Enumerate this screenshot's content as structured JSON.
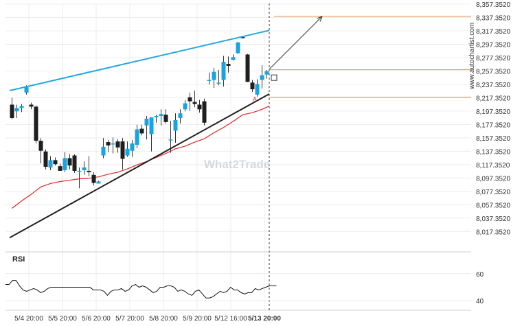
{
  "watermark": "What2Trade",
  "site_credit": "www.autochartist.com",
  "rsi_label": "RSI",
  "colors": {
    "up": "#1aa3e0",
    "down": "#1f1f1f",
    "resistance_line": "#22a8e0",
    "support_line": "#222222",
    "moving_average": "#e02424",
    "level_line": "#e08a4a",
    "current_time_line": "#333333",
    "rsi_line": "#111111"
  },
  "chart_data": {
    "type": "candlestick",
    "y_range": [
      8007.352,
      8357.352
    ],
    "y_ticks": [
      "8,357.3520",
      "8,337.3520",
      "8,317.3520",
      "8,297.3520",
      "8,277.3520",
      "8,257.3520",
      "8,237.3520",
      "8,217.3520",
      "8,197.3520",
      "8,177.3520",
      "8,157.3520",
      "8,137.3520",
      "8,117.3520",
      "8,097.3520",
      "8,077.3520",
      "8,057.3520",
      "8,037.3520",
      "8,017.3520"
    ],
    "x_labels": [
      {
        "label": "5/4 20:00",
        "index": 3.5
      },
      {
        "label": "5/5 20:00",
        "index": 10.5
      },
      {
        "label": "5/6 20:00",
        "index": 17.5
      },
      {
        "label": "5/7 20:00",
        "index": 24.5
      },
      {
        "label": "5/8 20:00",
        "index": 31.5
      },
      {
        "label": "5/9 20:00",
        "index": 38.5
      },
      {
        "label": "5/12 16:00",
        "index": 45.5
      },
      {
        "label": "5/13 20:00",
        "index": 52.5
      }
    ],
    "candles": [
      {
        "o": 8207,
        "h": 8217,
        "l": 8185,
        "c": 8187
      },
      {
        "o": 8197,
        "h": 8207,
        "l": 8187,
        "c": 8202
      },
      {
        "o": 8202,
        "h": 8208,
        "l": 8196,
        "c": 8205
      },
      {
        "o": 8225,
        "h": 8236,
        "l": 8222,
        "c": 8233
      },
      {
        "o": 8207,
        "h": 8210,
        "l": 8200,
        "c": 8204
      },
      {
        "o": 8204,
        "h": 8206,
        "l": 8149,
        "c": 8153
      },
      {
        "o": 8153,
        "h": 8157,
        "l": 8119,
        "c": 8138
      },
      {
        "o": 8137,
        "h": 8140,
        "l": 8110,
        "c": 8114
      },
      {
        "o": 8113,
        "h": 8130,
        "l": 8109,
        "c": 8124
      },
      {
        "o": 8124,
        "h": 8128,
        "l": 8116,
        "c": 8118
      },
      {
        "o": 8115,
        "h": 8119,
        "l": 8108,
        "c": 8108
      },
      {
        "o": 8109,
        "h": 8136,
        "l": 8106,
        "c": 8127
      },
      {
        "o": 8127,
        "h": 8133,
        "l": 8110,
        "c": 8116
      },
      {
        "o": 8131,
        "h": 8133,
        "l": 8105,
        "c": 8108
      },
      {
        "o": 8108,
        "h": 8113,
        "l": 8082,
        "c": 8108
      },
      {
        "o": 8109,
        "h": 8122,
        "l": 8102,
        "c": 8113
      },
      {
        "o": 8108,
        "h": 8130,
        "l": 8100,
        "c": 8106
      },
      {
        "o": 8102,
        "h": 8106,
        "l": 8086,
        "c": 8090
      },
      {
        "o": 8089,
        "h": 8093,
        "l": 8089,
        "c": 8092
      },
      {
        "o": 8131,
        "h": 8157,
        "l": 8127,
        "c": 8144
      },
      {
        "o": 8151,
        "h": 8154,
        "l": 8136,
        "c": 8146
      },
      {
        "o": 8148,
        "h": 8158,
        "l": 8134,
        "c": 8149
      },
      {
        "o": 8152,
        "h": 8155,
        "l": 8135,
        "c": 8143
      },
      {
        "o": 8152,
        "h": 8157,
        "l": 8110,
        "c": 8126
      },
      {
        "o": 8131,
        "h": 8152,
        "l": 8129,
        "c": 8141
      },
      {
        "o": 8138,
        "h": 8154,
        "l": 8129,
        "c": 8149
      },
      {
        "o": 8147,
        "h": 8177,
        "l": 8142,
        "c": 8170
      },
      {
        "o": 8171,
        "h": 8177,
        "l": 8161,
        "c": 8164
      },
      {
        "o": 8176,
        "h": 8190,
        "l": 8155,
        "c": 8186
      },
      {
        "o": 8163,
        "h": 8188,
        "l": 8137,
        "c": 8188
      },
      {
        "o": 8188,
        "h": 8192,
        "l": 8180,
        "c": 8190
      },
      {
        "o": 8190,
        "h": 8200,
        "l": 8176,
        "c": 8193
      },
      {
        "o": 8192,
        "h": 8200,
        "l": 8179,
        "c": 8181
      },
      {
        "o": 8154,
        "h": 8183,
        "l": 8135,
        "c": 8155
      },
      {
        "o": 8168,
        "h": 8194,
        "l": 8150,
        "c": 8184
      },
      {
        "o": 8187,
        "h": 8200,
        "l": 8179,
        "c": 8194
      },
      {
        "o": 8200,
        "h": 8214,
        "l": 8197,
        "c": 8209
      },
      {
        "o": 8218,
        "h": 8225,
        "l": 8198,
        "c": 8212
      },
      {
        "o": 8211,
        "h": 8228,
        "l": 8203,
        "c": 8208
      },
      {
        "o": 8207,
        "h": 8214,
        "l": 8195,
        "c": 8200
      },
      {
        "o": 8212,
        "h": 8216,
        "l": 8176,
        "c": 8180
      },
      {
        "o": 8244,
        "h": 8255,
        "l": 8237,
        "c": 8244
      },
      {
        "o": 8244,
        "h": 8262,
        "l": 8232,
        "c": 8256
      },
      {
        "o": 8239,
        "h": 8259,
        "l": 8236,
        "c": 8240
      },
      {
        "o": 8244,
        "h": 8280,
        "l": 8234,
        "c": 8271
      },
      {
        "o": 8268,
        "h": 8279,
        "l": 8255,
        "c": 8265
      },
      {
        "o": 8274,
        "h": 8282,
        "l": 8273,
        "c": 8278
      },
      {
        "o": 8284,
        "h": 8301,
        "l": 8283,
        "c": 8300
      },
      {
        "o": 8308,
        "h": 8309,
        "l": 8306,
        "c": 8307
      },
      {
        "o": 8282,
        "h": 8283,
        "l": 8241,
        "c": 8241
      },
      {
        "o": 8240,
        "h": 8244,
        "l": 8226,
        "c": 8230
      },
      {
        "o": 8222,
        "h": 8245,
        "l": 8219,
        "c": 8238
      },
      {
        "o": 8244,
        "h": 8266,
        "l": 8231,
        "c": 8251
      },
      {
        "o": 8252,
        "h": 8259,
        "l": 8246,
        "c": 8257
      }
    ],
    "moving_average": [
      [
        0,
        8052
      ],
      [
        2,
        8063
      ],
      [
        4,
        8073
      ],
      [
        6,
        8084
      ],
      [
        8,
        8089
      ],
      [
        10,
        8092
      ],
      [
        12,
        8094
      ],
      [
        14,
        8096
      ],
      [
        16,
        8097
      ],
      [
        18,
        8099
      ],
      [
        20,
        8103
      ],
      [
        22,
        8106
      ],
      [
        24,
        8111
      ],
      [
        26,
        8117
      ],
      [
        28,
        8122
      ],
      [
        30,
        8128
      ],
      [
        32,
        8134
      ],
      [
        34,
        8141
      ],
      [
        36,
        8145
      ],
      [
        38,
        8151
      ],
      [
        40,
        8156
      ],
      [
        42,
        8165
      ],
      [
        44,
        8173
      ],
      [
        46,
        8182
      ],
      [
        48,
        8192
      ],
      [
        50,
        8195
      ],
      [
        52,
        8200
      ],
      [
        53.5,
        8205
      ]
    ],
    "resistance_line": [
      [
        -0.5,
        8228
      ],
      [
        53.5,
        8318
      ]
    ],
    "support_line": [
      [
        -0.5,
        8008
      ],
      [
        53.5,
        8223
      ]
    ],
    "projection_arrow": [
      [
        53.5,
        8260
      ],
      [
        64.5,
        8339
      ]
    ],
    "levels": [
      {
        "name": "target",
        "value": 8339.35,
        "x_start": 54.5
      },
      {
        "name": "pattern-end",
        "value": 8259.2,
        "x_start": 53.5
      },
      {
        "name": "support-level",
        "value": 8218.3,
        "x_start": 53.5
      }
    ],
    "rsi": {
      "y_ticks": [
        60,
        40
      ],
      "range": [
        33,
        67
      ],
      "values": [
        52,
        52,
        55,
        55,
        51,
        48,
        47,
        48,
        49,
        48,
        46,
        47,
        49,
        50,
        50,
        50,
        50,
        50,
        50,
        50,
        50,
        50,
        50,
        50,
        50,
        48,
        48,
        48,
        47,
        44,
        47,
        48,
        48,
        49,
        47,
        48,
        51,
        52,
        50,
        51,
        50,
        48,
        46,
        47,
        50,
        50,
        51,
        51,
        50,
        47,
        48,
        47,
        45,
        44,
        47,
        48,
        45,
        42,
        42,
        43,
        45,
        47,
        46,
        47,
        50,
        48,
        48,
        46,
        45,
        46,
        46,
        49,
        48,
        49,
        50,
        51
      ],
      "last": 51
    },
    "marker_letter": "A"
  }
}
